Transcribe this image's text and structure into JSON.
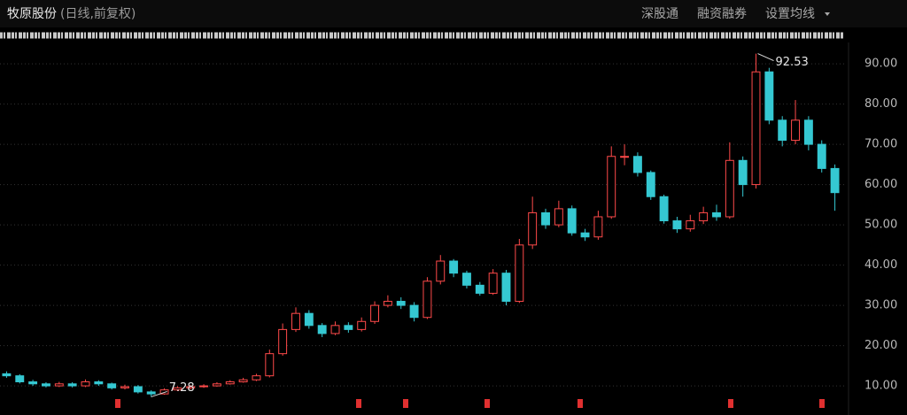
{
  "header": {
    "name": "牧原股份",
    "mode": "(日线,前复权)",
    "links": [
      "深股通",
      "融资融券",
      "设置均线"
    ]
  },
  "chart_data": {
    "type": "candlestick",
    "open": [
      13,
      12.5,
      11,
      10.5,
      10,
      10.5,
      10,
      11,
      10.5,
      9.5,
      9.8,
      8.5,
      8,
      9,
      9.5,
      9.8,
      10,
      10.5,
      11,
      11.5,
      12.5,
      18,
      24,
      28,
      25,
      23,
      25,
      24,
      26,
      30,
      31,
      30,
      27,
      36,
      41,
      38,
      35,
      33,
      38,
      31,
      45,
      53,
      50,
      54,
      48,
      47,
      52,
      67,
      67,
      63,
      57,
      51,
      49,
      51,
      53,
      52,
      66,
      60,
      88,
      76,
      71,
      76,
      70,
      64
    ],
    "high": [
      13.6,
      12.9,
      11.5,
      10.9,
      11,
      10.9,
      11.6,
      11.4,
      10.8,
      10.3,
      10.2,
      8.9,
      9.4,
      9.9,
      10.2,
      10.4,
      10.9,
      11.4,
      12,
      13,
      19,
      25.5,
      29.5,
      28.8,
      25.6,
      26,
      25.8,
      27,
      31,
      32.5,
      32,
      30.8,
      37,
      42.5,
      41.5,
      38.6,
      35.8,
      39,
      38.8,
      46.5,
      57,
      54,
      56,
      54.8,
      49,
      53.5,
      69.5,
      70,
      68,
      63.5,
      57.5,
      52,
      52.5,
      54.5,
      55,
      70.5,
      67,
      92.53,
      89,
      77,
      81,
      77,
      71,
      65
    ],
    "low": [
      12,
      10.6,
      10,
      9.6,
      9.7,
      9.6,
      9.7,
      10,
      9.1,
      9.1,
      8.1,
      7.28,
      7.8,
      8.7,
      9.2,
      9.5,
      9.8,
      10.3,
      10.8,
      11.2,
      12.1,
      17.5,
      23.4,
      24.2,
      22.1,
      22.6,
      23.2,
      23.5,
      25.4,
      29.5,
      29.1,
      26,
      26.6,
      35.2,
      37,
      34.2,
      32.4,
      32.6,
      30,
      30.6,
      44,
      49,
      49.4,
      47.3,
      46,
      46.3,
      51.5,
      64.8,
      62,
      56.2,
      50.3,
      48,
      48.3,
      50.2,
      51,
      51.5,
      57,
      59,
      75,
      69.5,
      70,
      68.5,
      63,
      53.5
    ],
    "close": [
      12.5,
      11,
      10.5,
      10,
      10.5,
      10,
      11,
      10.5,
      9.5,
      9.8,
      8.5,
      8,
      9,
      9.5,
      9.8,
      10,
      10.5,
      11,
      11.5,
      12.5,
      18,
      24,
      28,
      25,
      23,
      25,
      24,
      26,
      30,
      31,
      30,
      27,
      36,
      41,
      38,
      35,
      33,
      38,
      31,
      45,
      53,
      50,
      54,
      48,
      47,
      52,
      67,
      67,
      63,
      57,
      51,
      49,
      51,
      53,
      52,
      66,
      60,
      88,
      76,
      71,
      76,
      70,
      64,
      58
    ],
    "up_color": "#ff4a4a",
    "down_color": "#35c8d2",
    "ylim": [
      4.3,
      95.3
    ],
    "yticks": [
      {
        "value": 10,
        "label": "10.00"
      },
      {
        "value": 20,
        "label": "20.00"
      },
      {
        "value": 30,
        "label": "30.00"
      },
      {
        "value": 40,
        "label": "40.00"
      },
      {
        "value": 50,
        "label": "50.00"
      },
      {
        "value": 60,
        "label": "60.00"
      },
      {
        "value": 70,
        "label": "70.00"
      },
      {
        "value": 80,
        "label": "80.00"
      },
      {
        "value": 90,
        "label": "90.00"
      }
    ],
    "grid": true,
    "annotations": [
      "92.53",
      "7.28"
    ]
  }
}
